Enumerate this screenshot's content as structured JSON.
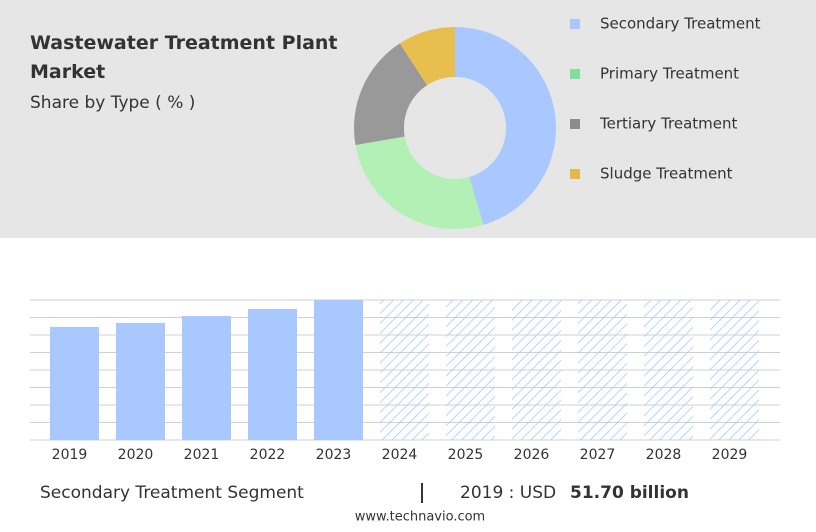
{
  "chart_data": [
    {
      "type": "pie",
      "title": "Wastewater Treatment Plant Market",
      "subtitle": "Share by Type ( % )",
      "donut": true,
      "categories": [
        "Secondary Treatment",
        "Primary Treatment",
        "Tertiary Treatment",
        "Sludge Treatment"
      ],
      "values": [
        45.5,
        26.8,
        18.5,
        9.2
      ],
      "colors": [
        "#a8c8ff",
        "#b3f0b5",
        "#999999",
        "#e8bf4e"
      ],
      "legend_colors": [
        "#a8c8ff",
        "#7fe09a",
        "#8c8c8c",
        "#e3b94a"
      ]
    },
    {
      "type": "bar",
      "categories": [
        "2019",
        "2020",
        "2021",
        "2022",
        "2023",
        "2024",
        "2025",
        "2026",
        "2027",
        "2028",
        "2029"
      ],
      "values": [
        51.7,
        53.5,
        56.7,
        59.9,
        64,
        null,
        null,
        null,
        null,
        null,
        null
      ],
      "color": "#a8c8ff",
      "ylim": [
        0,
        64
      ],
      "yticks": [
        0,
        8,
        16,
        24,
        32,
        40,
        48,
        56,
        64
      ],
      "grid": true
    }
  ],
  "footer": {
    "segment": "Secondary Treatment Segment",
    "year_label": "2019 : USD",
    "value": "51.70 billion",
    "website": "www.technavio.com"
  }
}
